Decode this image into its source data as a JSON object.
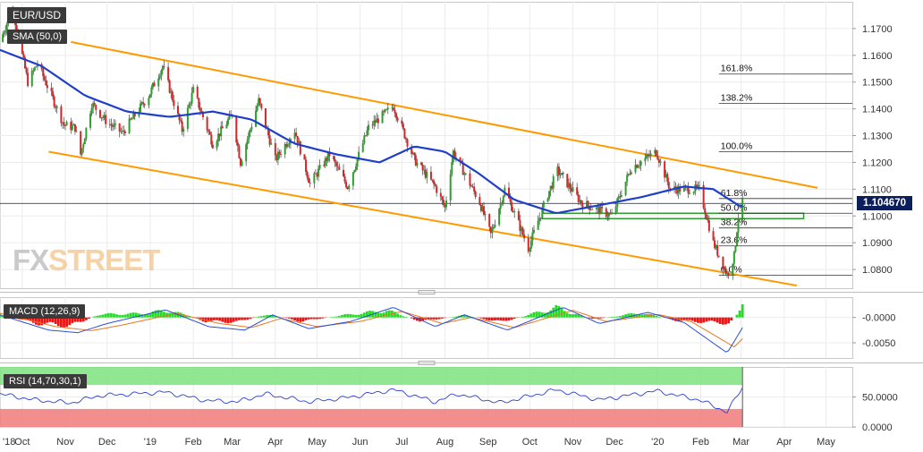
{
  "symbol": "EUR/USD",
  "indicators": {
    "sma": "SMA (50,0)",
    "macd": "MACD (12,26,9)",
    "rsi": "RSI (14,70,30,1)"
  },
  "watermark": {
    "fx": "FX",
    "street": "STREET"
  },
  "last_price": "1.104670",
  "colors": {
    "up": "#2ca02c",
    "down": "#d62728",
    "sma": "#1f3fc8",
    "channel": "#ff9900",
    "macd_pos": "#22dd22",
    "macd_neg": "#ee1111",
    "rsi_overbought": "#7ee27e",
    "rsi_oversold": "#f07a7a",
    "price_tag": "#0b1f5c"
  },
  "chart_data": [
    {
      "type": "candlestick",
      "panel": "price",
      "ylim": [
        1.073,
        1.18
      ],
      "yticks": [
        "1.1700",
        "1.1600",
        "1.1500",
        "1.1400",
        "1.1300",
        "1.1200",
        "1.1100",
        "1.1000",
        "1.0900",
        "1.0800"
      ],
      "ytick_values": [
        1.17,
        1.16,
        1.15,
        1.14,
        1.13,
        1.12,
        1.11,
        1.1,
        1.09,
        1.08
      ],
      "xticks": [
        "'18",
        "Oct",
        "Nov",
        "Dec",
        "'19",
        "Feb",
        "Mar",
        "Apr",
        "May",
        "Jun",
        "Jul",
        "Aug",
        "Sep",
        "Oct",
        "Nov",
        "Dec",
        "'20",
        "Feb",
        "Mar",
        "Apr",
        "May"
      ],
      "xtick_dates": [
        "2018-09-15",
        "2018-10-01",
        "2018-11-01",
        "2018-12-01",
        "2019-01-01",
        "2019-02-01",
        "2019-03-01",
        "2019-04-01",
        "2019-05-01",
        "2019-06-01",
        "2019-07-01",
        "2019-08-01",
        "2019-09-01",
        "2019-10-01",
        "2019-11-01",
        "2019-12-01",
        "2020-01-01",
        "2020-02-01",
        "2020-03-01",
        "2020-04-01",
        "2020-05-01"
      ],
      "x_range": [
        "2018-09-15",
        "2020-05-20"
      ],
      "price_path": [
        [
          "2018-09-15",
          1.165
        ],
        [
          "2018-09-24",
          1.178
        ],
        [
          "2018-10-01",
          1.16
        ],
        [
          "2018-10-05",
          1.15
        ],
        [
          "2018-10-12",
          1.157
        ],
        [
          "2018-10-22",
          1.145
        ],
        [
          "2018-10-31",
          1.134
        ],
        [
          "2018-11-08",
          1.133
        ],
        [
          "2018-11-12",
          1.123
        ],
        [
          "2018-11-20",
          1.142
        ],
        [
          "2018-12-01",
          1.135
        ],
        [
          "2018-12-12",
          1.131
        ],
        [
          "2018-12-31",
          1.145
        ],
        [
          "2019-01-10",
          1.156
        ],
        [
          "2019-01-24",
          1.132
        ],
        [
          "2019-02-01",
          1.147
        ],
        [
          "2019-02-15",
          1.127
        ],
        [
          "2019-03-01",
          1.138
        ],
        [
          "2019-03-07",
          1.12
        ],
        [
          "2019-03-20",
          1.143
        ],
        [
          "2019-04-01",
          1.121
        ],
        [
          "2019-04-15",
          1.132
        ],
        [
          "2019-04-26",
          1.112
        ],
        [
          "2019-05-10",
          1.123
        ],
        [
          "2019-05-23",
          1.111
        ],
        [
          "2019-06-07",
          1.133
        ],
        [
          "2019-06-25",
          1.141
        ],
        [
          "2019-07-10",
          1.121
        ],
        [
          "2019-07-25",
          1.111
        ],
        [
          "2019-08-01",
          1.103
        ],
        [
          "2019-08-07",
          1.124
        ],
        [
          "2019-08-26",
          1.105
        ],
        [
          "2019-09-03",
          1.093
        ],
        [
          "2019-09-13",
          1.11
        ],
        [
          "2019-09-30",
          1.088
        ],
        [
          "2019-10-14",
          1.108
        ],
        [
          "2019-10-21",
          1.117
        ],
        [
          "2019-11-07",
          1.105
        ],
        [
          "2019-11-29",
          1.1
        ],
        [
          "2019-12-13",
          1.118
        ],
        [
          "2019-12-31",
          1.124
        ],
        [
          "2020-01-10",
          1.11
        ],
        [
          "2020-01-31",
          1.11
        ],
        [
          "2020-02-10",
          1.09
        ],
        [
          "2020-02-20",
          1.078
        ],
        [
          "2020-02-25",
          1.085
        ],
        [
          "2020-02-28",
          1.1
        ],
        [
          "2020-03-02",
          1.1047
        ]
      ],
      "sma50_path": [
        [
          "2018-09-15",
          1.162
        ],
        [
          "2018-10-15",
          1.156
        ],
        [
          "2018-11-15",
          1.145
        ],
        [
          "2018-12-15",
          1.139
        ],
        [
          "2019-01-15",
          1.137
        ],
        [
          "2019-02-15",
          1.139
        ],
        [
          "2019-03-15",
          1.136
        ],
        [
          "2019-04-15",
          1.127
        ],
        [
          "2019-05-15",
          1.123
        ],
        [
          "2019-06-15",
          1.12
        ],
        [
          "2019-07-10",
          1.126
        ],
        [
          "2019-08-01",
          1.124
        ],
        [
          "2019-08-25",
          1.116
        ],
        [
          "2019-09-20",
          1.106
        ],
        [
          "2019-10-20",
          1.101
        ],
        [
          "2019-11-20",
          1.104
        ],
        [
          "2019-12-20",
          1.107
        ],
        [
          "2020-01-20",
          1.111
        ],
        [
          "2020-02-10",
          1.11
        ],
        [
          "2020-02-28",
          1.104
        ],
        [
          "2020-03-02",
          1.1035
        ]
      ],
      "channel": [
        {
          "from": [
            "2018-11-05",
            1.165
          ],
          "to": [
            "2020-04-25",
            1.1105
          ]
        },
        {
          "from": [
            "2018-10-20",
            1.124
          ],
          "to": [
            "2020-04-10",
            1.074
          ]
        }
      ],
      "fibonacci": [
        {
          "label": "161.8%",
          "value": 1.153
        },
        {
          "label": "138.2%",
          "value": 1.142
        },
        {
          "label": "100.0%",
          "value": 1.124
        },
        {
          "label": "61.8%",
          "value": 1.1065
        },
        {
          "label": "50.0%",
          "value": 1.101
        },
        {
          "label": "38.2%",
          "value": 1.0955
        },
        {
          "label": "23.6%",
          "value": 1.0888
        },
        {
          "label": "0.0%",
          "value": 1.0778
        }
      ],
      "fib_start": "2020-02-14",
      "support_zone": {
        "from": "2019-10-10",
        "to": "2020-04-15",
        "low": 1.099,
        "high": 1.101
      },
      "last_value": 1.10467
    },
    {
      "type": "bar",
      "panel": "macd",
      "ylim": [
        -0.008,
        0.004
      ],
      "yticks": [
        "-0.0000",
        "-0.0050"
      ],
      "ytick_values": [
        0,
        -0.005
      ],
      "hist_path": [
        [
          "2018-09-15",
          0.001
        ],
        [
          "2018-10-10",
          -0.0015
        ],
        [
          "2018-11-05",
          -0.0022
        ],
        [
          "2018-11-25",
          0.0008
        ],
        [
          "2018-12-25",
          0.001
        ],
        [
          "2019-01-15",
          0.0018
        ],
        [
          "2019-02-10",
          -0.001
        ],
        [
          "2019-03-05",
          -0.0012
        ],
        [
          "2019-03-25",
          0.0008
        ],
        [
          "2019-04-20",
          -0.001
        ],
        [
          "2019-05-20",
          0.0006
        ],
        [
          "2019-06-20",
          0.0018
        ],
        [
          "2019-07-15",
          -0.001
        ],
        [
          "2019-08-15",
          0.0006
        ],
        [
          "2019-09-10",
          -0.0012
        ],
        [
          "2019-10-20",
          0.0025
        ],
        [
          "2019-11-15",
          -0.0005
        ],
        [
          "2019-12-20",
          0.0012
        ],
        [
          "2020-01-15",
          -0.0008
        ],
        [
          "2020-02-05",
          -0.0012
        ],
        [
          "2020-02-22",
          -0.0015
        ],
        [
          "2020-03-02",
          0.003
        ]
      ],
      "macd_path": [
        [
          "2018-09-15",
          0.0005
        ],
        [
          "2018-10-20",
          -0.0025
        ],
        [
          "2018-11-10",
          -0.003
        ],
        [
          "2018-12-01",
          -0.0012
        ],
        [
          "2019-01-12",
          0.0015
        ],
        [
          "2019-02-12",
          -0.0018
        ],
        [
          "2019-03-10",
          -0.0025
        ],
        [
          "2019-03-30",
          0.0005
        ],
        [
          "2019-04-25",
          -0.0022
        ],
        [
          "2019-05-25",
          -0.0008
        ],
        [
          "2019-06-25",
          0.002
        ],
        [
          "2019-07-25",
          -0.0018
        ],
        [
          "2019-08-15",
          0.0005
        ],
        [
          "2019-09-15",
          -0.0025
        ],
        [
          "2019-10-25",
          0.002
        ],
        [
          "2019-11-20",
          -0.0012
        ],
        [
          "2019-12-25",
          0.001
        ],
        [
          "2020-01-20",
          -0.001
        ],
        [
          "2020-02-20",
          -0.007
        ],
        [
          "2020-03-02",
          -0.002
        ]
      ],
      "signal_path": [
        [
          "2018-09-15",
          0.0008
        ],
        [
          "2018-10-25",
          -0.0018
        ],
        [
          "2018-11-20",
          -0.0026
        ],
        [
          "2018-12-10",
          -0.0016
        ],
        [
          "2019-01-20",
          0.0008
        ],
        [
          "2019-02-20",
          -0.0012
        ],
        [
          "2019-03-15",
          -0.002
        ],
        [
          "2019-04-05",
          -0.0002
        ],
        [
          "2019-05-01",
          -0.0018
        ],
        [
          "2019-06-01",
          -0.0008
        ],
        [
          "2019-07-01",
          0.0012
        ],
        [
          "2019-07-30",
          -0.0012
        ],
        [
          "2019-08-20",
          0.0
        ],
        [
          "2019-09-20",
          -0.002
        ],
        [
          "2019-11-01",
          0.0014
        ],
        [
          "2019-11-25",
          -0.0008
        ],
        [
          "2020-01-01",
          0.0006
        ],
        [
          "2020-01-25",
          -0.0008
        ],
        [
          "2020-02-25",
          -0.0058
        ],
        [
          "2020-03-02",
          -0.0042
        ]
      ]
    },
    {
      "type": "line",
      "panel": "rsi",
      "ylim": [
        0,
        100
      ],
      "yticks": [
        "50.0000",
        "0.0000"
      ],
      "ytick_values": [
        50,
        0
      ],
      "overbought": 70,
      "oversold": 30,
      "rsi_path": [
        [
          "2018-09-15",
          55
        ],
        [
          "2018-10-10",
          45
        ],
        [
          "2018-11-05",
          40
        ],
        [
          "2018-11-25",
          52
        ],
        [
          "2019-01-12",
          58
        ],
        [
          "2019-02-10",
          44
        ],
        [
          "2019-03-05",
          42
        ],
        [
          "2019-03-25",
          55
        ],
        [
          "2019-04-25",
          42
        ],
        [
          "2019-05-20",
          48
        ],
        [
          "2019-06-25",
          62
        ],
        [
          "2019-07-25",
          42
        ],
        [
          "2019-08-10",
          55
        ],
        [
          "2019-09-10",
          40
        ],
        [
          "2019-10-20",
          62
        ],
        [
          "2019-11-20",
          45
        ],
        [
          "2019-12-31",
          60
        ],
        [
          "2020-01-31",
          45
        ],
        [
          "2020-02-20",
          25
        ],
        [
          "2020-03-02",
          66
        ]
      ]
    }
  ]
}
